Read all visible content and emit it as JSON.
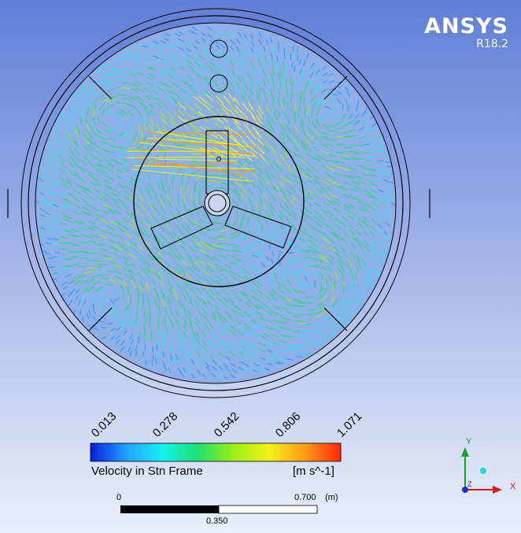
{
  "brand": {
    "name": "ANSYS",
    "version": "R18.2"
  },
  "legend": {
    "ticks": [
      "0.013",
      "0.278",
      "0.542",
      "0.806",
      "1.071"
    ],
    "title": "Velocity in Stn Frame",
    "unit": "[m s^-1]",
    "colors": [
      "#0a1ed8",
      "#1fa0ff",
      "#16f2ee",
      "#20e070",
      "#9bf016",
      "#f2f21a",
      "#ff9a1a",
      "#ff2a0a"
    ]
  },
  "scale_bar": {
    "start": "0",
    "end": "0.700",
    "unit": "(m)",
    "mid": "0.350"
  },
  "axes": {
    "y": "Y",
    "z": "Z",
    "x": "X"
  }
}
